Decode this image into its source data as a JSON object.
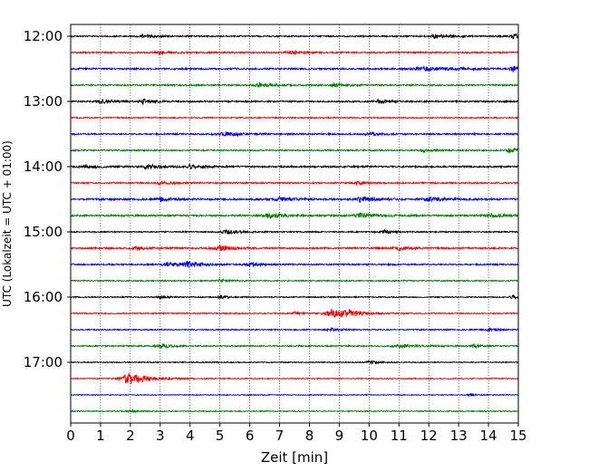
{
  "chart_data": {
    "type": "line",
    "title": "",
    "xlabel": "Zeit  [min]",
    "ylabel": "UTC (Lokalzeit = UTC + 01:00)",
    "xlim": [
      0,
      15
    ],
    "x_ticks": [
      "0",
      "1",
      "2",
      "3",
      "4",
      "5",
      "6",
      "7",
      "8",
      "9",
      "10",
      "11",
      "12",
      "13",
      "14",
      "15"
    ],
    "y_ticks": [
      "12:00",
      "13:00",
      "14:00",
      "15:00",
      "16:00",
      "17:00"
    ],
    "grid": "vertical dotted lines at each minute",
    "description": "Helicorder seismogram: 24 traces of 15 minutes each (12:00–17:45 UTC), colors cycling black, red, blue, green.",
    "color_cycle": [
      "#000000",
      "#ff0000",
      "#0000ff",
      "#008000"
    ],
    "traces": [
      {
        "start": "12:00",
        "noise": 0.8,
        "events": [
          {
            "t": 2.4,
            "amp": 2.2,
            "w": 0.4
          },
          {
            "t": 12.2,
            "amp": 2.5,
            "w": 0.5
          },
          {
            "t": 14.8,
            "amp": 3.0,
            "w": 0.3
          }
        ]
      },
      {
        "start": "12:15",
        "noise": 0.9,
        "events": [
          {
            "t": 3.0,
            "amp": 2.0,
            "w": 0.4
          },
          {
            "t": 7.4,
            "amp": 2.0,
            "w": 0.4
          }
        ]
      },
      {
        "start": "12:30",
        "noise": 1.0,
        "events": [
          {
            "t": 11.8,
            "amp": 2.2,
            "w": 0.9
          },
          {
            "t": 14.8,
            "amp": 3.0,
            "w": 0.3
          }
        ]
      },
      {
        "start": "12:45",
        "noise": 0.9,
        "events": [
          {
            "t": 6.3,
            "amp": 2.5,
            "w": 0.5
          },
          {
            "t": 8.8,
            "amp": 2.3,
            "w": 0.4
          }
        ]
      },
      {
        "start": "13:00",
        "noise": 0.9,
        "events": [
          {
            "t": 1.0,
            "amp": 2.0,
            "w": 0.5
          },
          {
            "t": 2.4,
            "amp": 3.0,
            "w": 0.3
          },
          {
            "t": 10.3,
            "amp": 2.2,
            "w": 0.4
          }
        ]
      },
      {
        "start": "13:15",
        "noise": 0.7,
        "events": []
      },
      {
        "start": "13:30",
        "noise": 0.9,
        "events": [
          {
            "t": 5.1,
            "amp": 2.5,
            "w": 0.5
          },
          {
            "t": 10.0,
            "amp": 2.0,
            "w": 0.4
          }
        ]
      },
      {
        "start": "13:45",
        "noise": 0.8,
        "events": [
          {
            "t": 11.8,
            "amp": 2.0,
            "w": 0.3
          },
          {
            "t": 14.7,
            "amp": 3.0,
            "w": 0.3
          }
        ]
      },
      {
        "start": "14:00",
        "noise": 1.0,
        "events": [
          {
            "t": 0.5,
            "amp": 2.0,
            "w": 0.4
          },
          {
            "t": 2.5,
            "amp": 2.8,
            "w": 0.4
          },
          {
            "t": 4.0,
            "amp": 2.0,
            "w": 0.4
          }
        ]
      },
      {
        "start": "14:15",
        "noise": 0.9,
        "events": [
          {
            "t": 3.0,
            "amp": 2.0,
            "w": 0.4
          },
          {
            "t": 9.6,
            "amp": 2.0,
            "w": 0.3
          }
        ]
      },
      {
        "start": "14:30",
        "noise": 1.1,
        "events": [
          {
            "t": 3.0,
            "amp": 2.2,
            "w": 0.3
          },
          {
            "t": 7.0,
            "amp": 2.0,
            "w": 0.5
          },
          {
            "t": 9.7,
            "amp": 3.2,
            "w": 0.4
          },
          {
            "t": 12.0,
            "amp": 2.2,
            "w": 0.5
          }
        ]
      },
      {
        "start": "14:45",
        "noise": 1.0,
        "events": [
          {
            "t": 6.6,
            "amp": 3.0,
            "w": 0.5
          },
          {
            "t": 9.7,
            "amp": 2.4,
            "w": 0.6
          },
          {
            "t": 14.0,
            "amp": 2.0,
            "w": 0.5
          }
        ]
      },
      {
        "start": "15:00",
        "noise": 0.8,
        "events": [
          {
            "t": 5.2,
            "amp": 2.2,
            "w": 0.5
          },
          {
            "t": 10.5,
            "amp": 2.0,
            "w": 0.4
          }
        ]
      },
      {
        "start": "15:15",
        "noise": 1.0,
        "events": [
          {
            "t": 2.2,
            "amp": 2.0,
            "w": 0.4
          },
          {
            "t": 5.0,
            "amp": 3.0,
            "w": 0.5
          },
          {
            "t": 11.0,
            "amp": 2.0,
            "w": 0.4
          }
        ]
      },
      {
        "start": "15:30",
        "noise": 0.9,
        "events": [
          {
            "t": 3.2,
            "amp": 2.8,
            "w": 0.4
          },
          {
            "t": 3.9,
            "amp": 3.6,
            "w": 0.4
          },
          {
            "t": 6.0,
            "amp": 2.2,
            "w": 0.4
          }
        ]
      },
      {
        "start": "15:45",
        "noise": 0.7,
        "events": [
          {
            "t": 5.0,
            "amp": 1.8,
            "w": 0.3
          }
        ]
      },
      {
        "start": "16:00",
        "noise": 0.7,
        "events": [
          {
            "t": 3.0,
            "amp": 2.0,
            "w": 0.2
          },
          {
            "t": 5.0,
            "amp": 2.0,
            "w": 0.2
          },
          {
            "t": 14.8,
            "amp": 2.5,
            "w": 0.2
          }
        ]
      },
      {
        "start": "16:15",
        "noise": 0.7,
        "events": [
          {
            "t": 7.5,
            "amp": 1.8,
            "w": 0.2
          },
          {
            "t": 8.7,
            "amp": 6.0,
            "w": 0.5
          },
          {
            "t": 9.3,
            "amp": 3.5,
            "w": 0.4
          }
        ]
      },
      {
        "start": "16:30",
        "noise": 0.7,
        "events": [
          {
            "t": 8.7,
            "amp": 2.0,
            "w": 0.3
          },
          {
            "t": 14.0,
            "amp": 2.2,
            "w": 0.2
          }
        ]
      },
      {
        "start": "16:45",
        "noise": 0.8,
        "events": [
          {
            "t": 3.0,
            "amp": 3.0,
            "w": 0.3
          },
          {
            "t": 11.0,
            "amp": 2.0,
            "w": 0.6
          },
          {
            "t": 13.5,
            "amp": 2.0,
            "w": 0.2
          }
        ]
      },
      {
        "start": "17:00",
        "noise": 0.6,
        "events": [
          {
            "t": 10.0,
            "amp": 1.8,
            "w": 0.3
          }
        ]
      },
      {
        "start": "17:15",
        "noise": 0.6,
        "events": [
          {
            "t": 1.9,
            "amp": 8.0,
            "w": 0.6
          }
        ]
      },
      {
        "start": "17:30",
        "noise": 0.5,
        "events": [
          {
            "t": 13.4,
            "amp": 1.5,
            "w": 0.2
          }
        ]
      },
      {
        "start": "17:45",
        "noise": 0.6,
        "events": [
          {
            "t": 2.0,
            "amp": 1.5,
            "w": 0.3
          }
        ]
      }
    ]
  }
}
